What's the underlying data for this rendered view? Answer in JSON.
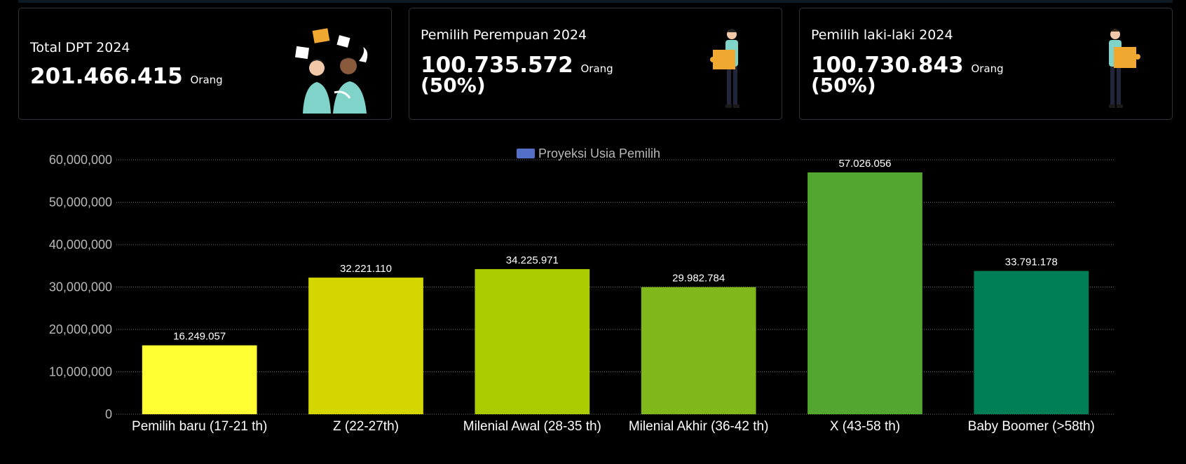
{
  "cards": [
    {
      "title": "Total DPT 2024",
      "value": "201.466.415",
      "unit": "Orang",
      "percent": ""
    },
    {
      "title": "Pemilih Perempuan 2024",
      "value": "100.735.572",
      "unit": "Orang",
      "percent": "(50%)"
    },
    {
      "title": "Pemilih laki-laki 2024",
      "value": "100.730.843",
      "unit": "Orang",
      "percent": "(50%)"
    }
  ],
  "icons": {
    "card1": "people-discussion-icon",
    "card2": "woman-holding-puzzle-icon",
    "card3": "man-holding-puzzle-icon"
  },
  "chart_data": {
    "type": "bar",
    "legend": "Proyeksi Usia Pemilih",
    "legend_color": "#5470c6",
    "legend_position": "top-center",
    "categories": [
      "Pemilih baru (17-21 th)",
      "Z (22-27th)",
      "Milenial Awal (28-35 th)",
      "Milenial Akhir (36-42 th)",
      "X (43-58 th)",
      "Baby Boomer (>58th)"
    ],
    "values": [
      16249057,
      32221110,
      34225971,
      29982784,
      57026056,
      33791178
    ],
    "value_labels": [
      "16.249.057",
      "32.221.110",
      "34.225.971",
      "29.982.784",
      "57.026.056",
      "33.791.178"
    ],
    "colors": [
      "#ffff33",
      "#d4d600",
      "#aacb00",
      "#80b81c",
      "#53a630",
      "#007f56"
    ],
    "yticks": [
      "0",
      "10,000,000",
      "20,000,000",
      "30,000,000",
      "40,000,000",
      "50,000,000",
      "60,000,000"
    ],
    "ylim": [
      0,
      60000000
    ],
    "grid": true
  }
}
